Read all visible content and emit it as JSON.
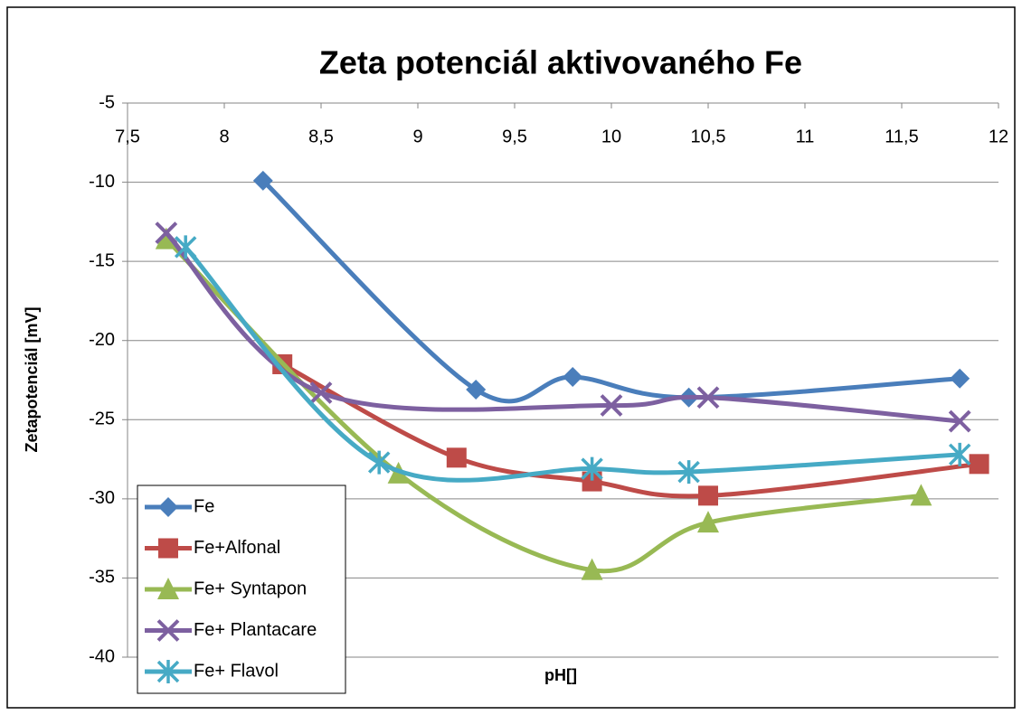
{
  "chart_data": {
    "type": "line",
    "title": "Zeta potenciál aktivovaného  Fe",
    "x_label": "pH[]",
    "y_label": "Zetapotenciál [mV]",
    "xlim": [
      7.5,
      12
    ],
    "ylim": [
      -40,
      -5
    ],
    "xticks": [
      {
        "value": 7.5,
        "label": "7,5"
      },
      8,
      {
        "value": 8.5,
        "label": "8,5"
      },
      9,
      {
        "value": 9.5,
        "label": "9,5"
      },
      10,
      {
        "value": 10.5,
        "label": "10,5"
      },
      11,
      {
        "value": 11.5,
        "label": "11,5"
      },
      12
    ],
    "yticks": [
      -40,
      -35,
      -30,
      -25,
      -20,
      -15,
      -10,
      -5
    ],
    "grid": true,
    "smooth": true,
    "legend": "lower left",
    "series": [
      {
        "name": "Fe",
        "color": "#4a7ebb",
        "marker": "diamond",
        "x": [
          8.2,
          9.3,
          9.8,
          10.4,
          11.8
        ],
        "values": [
          -9.9,
          -23.1,
          -22.3,
          -23.6,
          -22.4
        ]
      },
      {
        "name": "Fe+Alfonal",
        "color": "#be4b48",
        "marker": "square",
        "x": [
          8.3,
          9.2,
          9.9,
          10.5,
          11.9
        ],
        "values": [
          -21.5,
          -27.4,
          -28.9,
          -29.8,
          -27.8
        ]
      },
      {
        "name": "Fe+ Syntapon",
        "color": "#98b954",
        "marker": "triangle",
        "x": [
          7.7,
          8.9,
          9.9,
          10.5,
          11.6
        ],
        "values": [
          -13.6,
          -28.4,
          -34.5,
          -31.5,
          -29.8
        ]
      },
      {
        "name": "Fe+ Plantacare",
        "color": "#7d60a0",
        "marker": "x",
        "x": [
          7.7,
          8.5,
          10.0,
          10.5,
          11.8
        ],
        "values": [
          -13.2,
          -23.3,
          -24.1,
          -23.6,
          -25.1
        ]
      },
      {
        "name": "Fe+ Flavol",
        "color": "#46aac5",
        "marker": "star",
        "x": [
          7.8,
          8.8,
          9.9,
          10.4,
          11.8
        ],
        "values": [
          -14.1,
          -27.7,
          -28.1,
          -28.3,
          -27.2
        ]
      }
    ]
  }
}
